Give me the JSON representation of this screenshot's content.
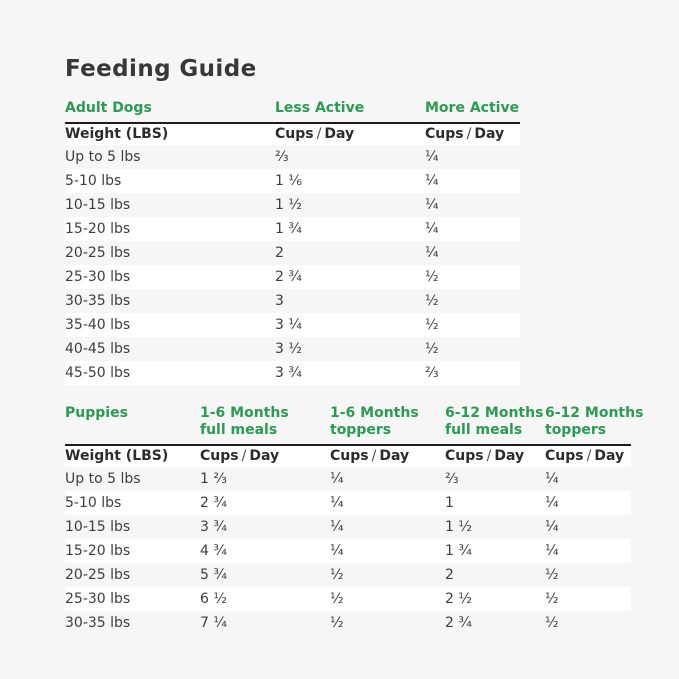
{
  "page": {
    "title": "Feeding Guide"
  },
  "colors": {
    "accent_green": "#2a9c51",
    "heading_text": "#383838",
    "body_text": "#3e3e3e",
    "page_bg": "#f6f6f6",
    "row_stripe": "#ffffff",
    "header_rule": "#1d1d1d"
  },
  "labels": {
    "cups": "Cups",
    "slash": "/",
    "day": "Day",
    "puppy_cols": [
      {
        "line1": "1-6 Months",
        "line2": "full meals"
      },
      {
        "line1": "1-6 Months",
        "line2": "toppers"
      },
      {
        "line1": "6-12 Months",
        "line2": "full meals"
      },
      {
        "line1": "6-12 Months",
        "line2": "toppers"
      }
    ]
  },
  "chart_data": [
    {
      "type": "table",
      "section": "Adult Dogs",
      "column_groups": [
        "Less Active",
        "More Active"
      ],
      "columns": [
        "Weight (LBS)",
        "Cups / Day",
        "Cups / Day"
      ],
      "rows": [
        [
          "Up to 5 lbs",
          "⅔",
          "¼"
        ],
        [
          "5-10 lbs",
          "1 ⅙",
          "¼"
        ],
        [
          "10-15 lbs",
          "1 ½",
          "¼"
        ],
        [
          "15-20 lbs",
          "1 ¾",
          "¼"
        ],
        [
          "20-25 lbs",
          "2",
          "¼"
        ],
        [
          "25-30 lbs",
          "2 ¾",
          "½"
        ],
        [
          "30-35 lbs",
          "3",
          "½"
        ],
        [
          "35-40 lbs",
          "3 ¼",
          "½"
        ],
        [
          "40-45 lbs",
          "3 ½",
          "½"
        ],
        [
          "45-50 lbs",
          "3 ¾",
          "⅔"
        ]
      ]
    },
    {
      "type": "table",
      "section": "Puppies",
      "column_groups": [
        "1-6 Months full meals",
        "1-6 Months toppers",
        "6-12 Months full meals",
        "6-12 Months toppers"
      ],
      "columns": [
        "Weight (LBS)",
        "Cups / Day",
        "Cups / Day",
        "Cups / Day",
        "Cups / Day"
      ],
      "rows": [
        [
          "Up to 5 lbs",
          "1 ⅔",
          "¼",
          "⅔",
          "¼"
        ],
        [
          "5-10 lbs",
          "2 ¾",
          "¼",
          "1",
          "¼"
        ],
        [
          "10-15 lbs",
          "3 ¾",
          "¼",
          "1 ½",
          "¼"
        ],
        [
          "15-20 lbs",
          "4 ¾",
          "¼",
          "1 ¾",
          "¼"
        ],
        [
          "20-25 lbs",
          "5 ¾",
          "½",
          "2",
          "½"
        ],
        [
          "25-30 lbs",
          "6 ½",
          "½",
          "2 ½",
          "½"
        ],
        [
          "30-35 lbs",
          "7 ¼",
          "½",
          "2 ¾",
          "½"
        ]
      ]
    }
  ]
}
